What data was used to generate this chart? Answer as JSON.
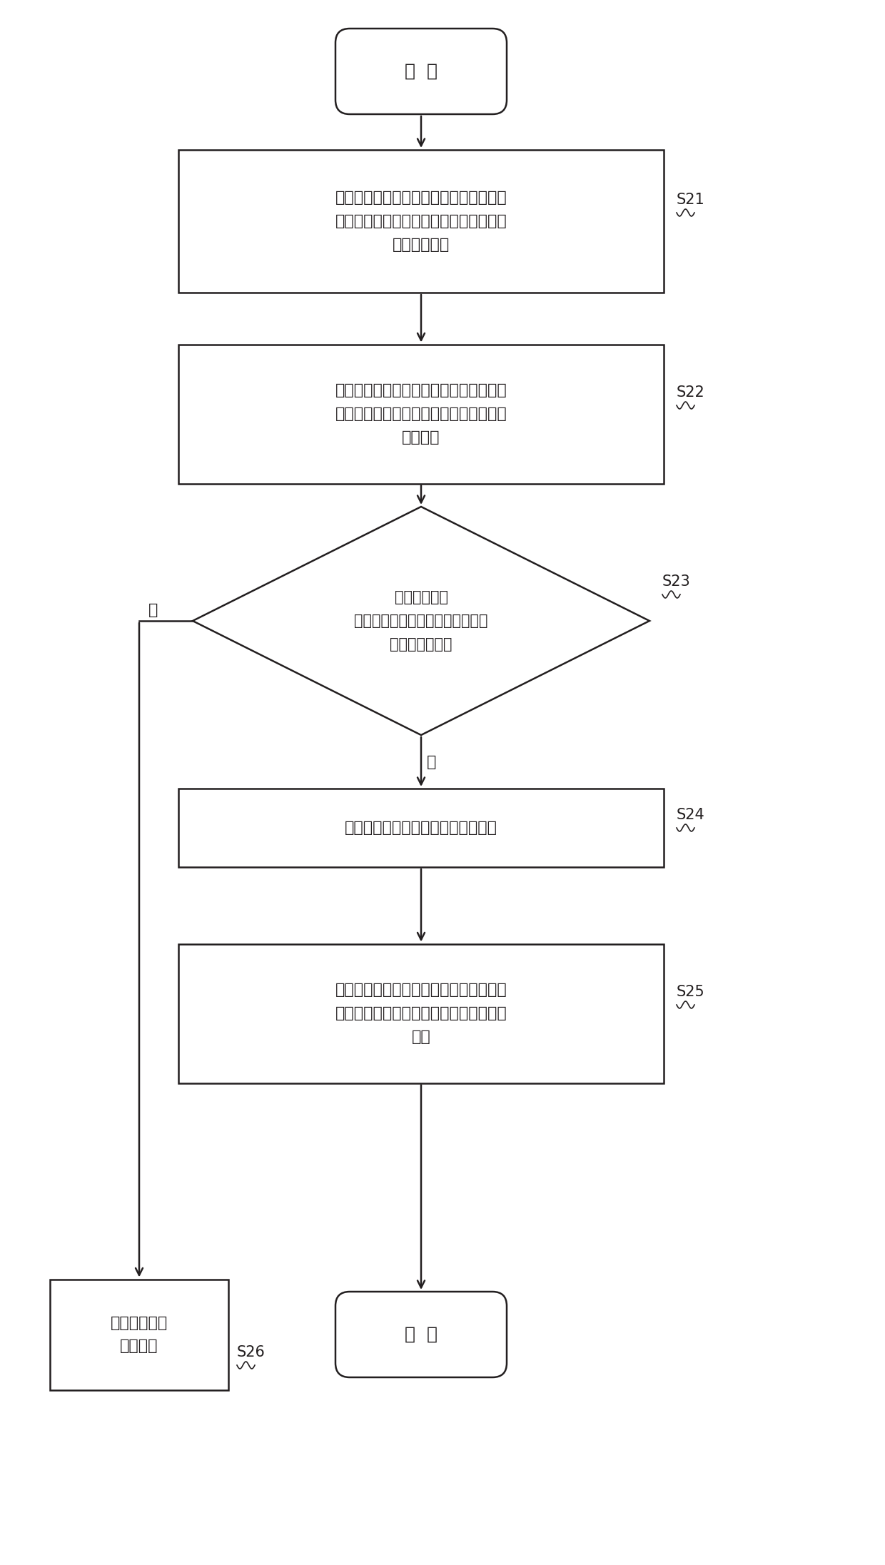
{
  "bg_color": "#ffffff",
  "line_color": "#231f20",
  "text_color": "#231f20",
  "font_size": 16,
  "start_text": "开  始",
  "end_text": "结  束",
  "s21_text": "所述接口类型为广域网接口的内核网络接\n口接收待转发数据包，所述待转发数据包\n包括接口标记",
  "s22_text": "根据所述待转发数据包的接口标记，确定\n所述待转发数据包的原始接口名称和原始\n接口编号",
  "s23_text": "判断所述待转\n发数据包的原始接口编号与目标接\n口编号是否相同",
  "s24_text": "去除所述待转发数据包中的接口标记",
  "s25_text": "将去除接口标记后的所述待转发数据包转\n发至与所述目标接口编号对应的内核网络\n接口",
  "s26_text": "丢弃所述待转\n发数据包",
  "yes_label": "是",
  "no_label": "否",
  "s21_label": "S21",
  "s22_label": "S22",
  "s23_label": "S23",
  "s24_label": "S24",
  "s25_label": "S25",
  "s26_label": "S26"
}
